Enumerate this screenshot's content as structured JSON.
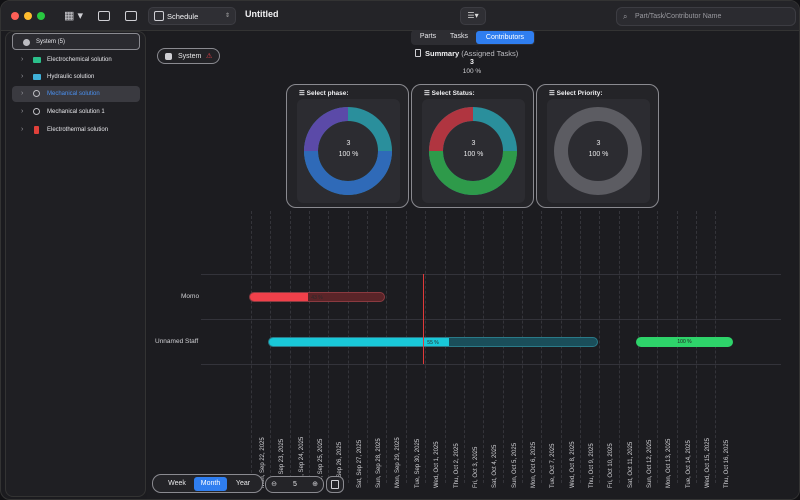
{
  "toolbar": {
    "mode_label": "Schedule",
    "doc_title": "Untitled",
    "search_placeholder": "Part/Task/Contributor Name"
  },
  "sidebar": {
    "items": [
      {
        "label": "System (5)",
        "color": "#9a9aa0"
      },
      {
        "label": "Electrochemical solution",
        "color": "#2bbf8a"
      },
      {
        "label": "Hydraulic solution",
        "color": "#3fb0d8"
      },
      {
        "label": "Mechanical solution",
        "color": "#9a9aa0"
      },
      {
        "label": "Mechanical solution 1",
        "color": "#9a9aa0"
      },
      {
        "label": "Electrothermal solution",
        "color": "#e0403a"
      }
    ]
  },
  "tabs": [
    "Parts",
    "Tasks",
    "Contributors"
  ],
  "system_chip": "System",
  "summary": {
    "title": "Summary",
    "subtitle": "(Assigned Tasks)",
    "count": "3",
    "percent": "100 %"
  },
  "cards": [
    {
      "header": "Select phase:",
      "count": "3",
      "percent": "100 %"
    },
    {
      "header": "Select Status:",
      "count": "3",
      "percent": "100 %"
    },
    {
      "header": "Select Priority:",
      "count": "3",
      "percent": "100 %"
    }
  ],
  "gantt": {
    "rows": [
      {
        "name": "Momo",
        "bars": [
          {
            "label": "43 %",
            "progress": 0.43,
            "color": "#f0404a"
          }
        ]
      },
      {
        "name": "Unnamed Staff",
        "bars": [
          {
            "label": "55 %",
            "progress": 0.55,
            "color": "#19c8d8"
          },
          {
            "label": "100 %",
            "progress": 1.0,
            "color": "#2ed36a"
          }
        ]
      }
    ],
    "dates": [
      "Mon, Sep 22, 2025",
      "Tue, Sep 23, 2025",
      "Wed, Sep 24, 2025",
      "Thu, Sep 25, 2025",
      "Fri, Sep 26, 2025",
      "Sat, Sep 27, 2025",
      "Sun, Sep 28, 2025",
      "Mon, Sep 29, 2025",
      "Tue, Sep 30, 2025",
      "Wed, Oct 1, 2025",
      "Thu, Oct 2, 2025",
      "Fri, Oct 3, 2025",
      "Sat, Oct 4, 2025",
      "Sun, Oct 5, 2025",
      "Mon, Oct 6, 2025",
      "Tue, Oct 7, 2025",
      "Wed, Oct 8, 2025",
      "Thu, Oct 9, 2025",
      "Fri, Oct 10, 2025",
      "Sat, Oct 11, 2025",
      "Sun, Oct 12, 2025",
      "Mon, Oct 13, 2025",
      "Tue, Oct 14, 2025",
      "Wed, Oct 15, 2025",
      "Thu, Oct 16, 2025"
    ]
  },
  "controls": {
    "week": "Week",
    "month": "Month",
    "year": "Year",
    "zoom_value": "5"
  }
}
